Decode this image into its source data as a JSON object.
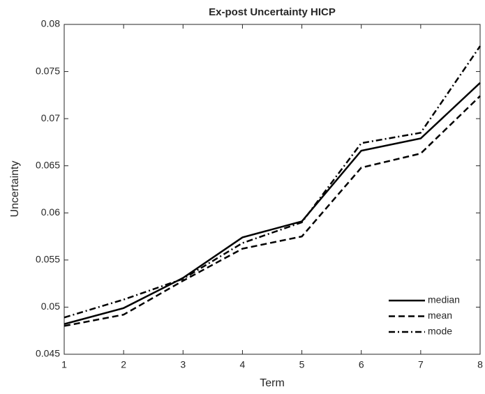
{
  "chart_data": {
    "type": "line",
    "title": "Ex-post Uncertainty HICP",
    "x_label": "Term",
    "y_label": "Uncertainty",
    "x": [
      1,
      2,
      3,
      4,
      5,
      6,
      7,
      8
    ],
    "series": [
      {
        "name": "median",
        "color": "#000000",
        "dash": "solid",
        "values": [
          0.0482,
          0.0499,
          0.0531,
          0.0574,
          0.0591,
          0.0666,
          0.0679,
          0.0738
        ]
      },
      {
        "name": "mean",
        "color": "#000000",
        "dash": "dashed",
        "values": [
          0.048,
          0.0492,
          0.0528,
          0.0562,
          0.0575,
          0.0648,
          0.0663,
          0.0724
        ]
      },
      {
        "name": "mode",
        "color": "#000000",
        "dash": "dashdot",
        "values": [
          0.0489,
          0.0508,
          0.053,
          0.0568,
          0.059,
          0.0674,
          0.0685,
          0.0777
        ]
      }
    ],
    "xlim": [
      1,
      8
    ],
    "xticks": [
      1,
      2,
      3,
      4,
      5,
      6,
      7,
      8
    ],
    "ylim": [
      0.045,
      0.08
    ],
    "yticks": [
      0.045,
      0.05,
      0.055,
      0.06,
      0.065,
      0.07,
      0.075,
      0.08
    ],
    "grid": false,
    "legend": "southeast"
  }
}
